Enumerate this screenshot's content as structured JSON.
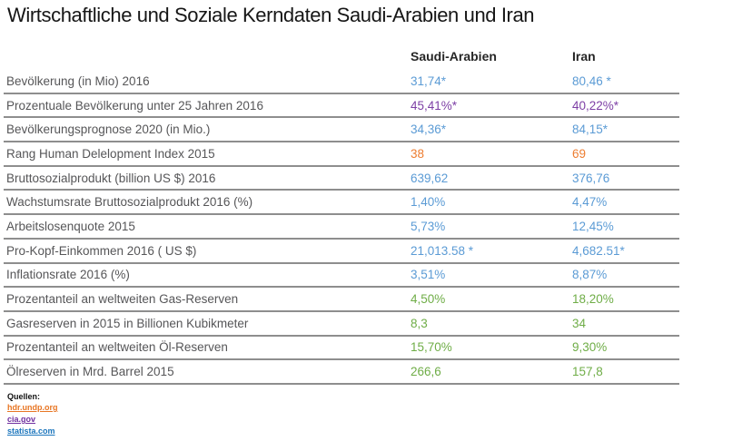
{
  "chart_data": {
    "type": "table",
    "title": "Wirtschaftliche und Soziale Kerndaten Saudi-Arabien und Iran",
    "columns": [
      "Saudi-Arabien",
      "Iran"
    ],
    "rows": [
      {
        "label": "Bevölkerung (in Mio) 2016",
        "values": [
          "31,74*",
          "80,46 *"
        ],
        "value_color": "#5b9bd5"
      },
      {
        "label": "Prozentuale Bevölkerung unter 25 Jahren 2016",
        "values": [
          "45,41%*",
          "40,22%*"
        ],
        "value_color": "#7d3fa5"
      },
      {
        "label": "Bevölkerungsprognose 2020 (in Mio.)",
        "values": [
          "34,36*",
          "84,15*"
        ],
        "value_color": "#5b9bd5"
      },
      {
        "label": "Rang Human Delelopment Index 2015",
        "values": [
          "38",
          "69"
        ],
        "value_color": "#ed7d31"
      },
      {
        "label": "Bruttosozialprodukt (billion US $) 2016",
        "values": [
          "639,62",
          "376,76"
        ],
        "value_color": "#5b9bd5"
      },
      {
        "label": "Wachstumsrate Bruttosozialprodukt 2016 (%)",
        "values": [
          "1,40%",
          "4,47%"
        ],
        "value_color": "#5b9bd5"
      },
      {
        "label": "Arbeitslosenquote 2015",
        "values": [
          "5,73%",
          "12,45%"
        ],
        "value_color": "#5b9bd5"
      },
      {
        "label": "Pro-Kopf-Einkommen 2016 ( US $)",
        "values": [
          "21,013.58 *",
          "4,682.51*"
        ],
        "value_color": "#5b9bd5"
      },
      {
        "label": "Inflationsrate 2016 (%)",
        "values": [
          "3,51%",
          "8,87%"
        ],
        "value_color": "#5b9bd5"
      },
      {
        "label": "Prozentanteil an weltweiten Gas-Reserven",
        "values": [
          "4,50%",
          "18,20%"
        ],
        "value_color": "#6fad47"
      },
      {
        "label": "Gasreserven in 2015 in Billionen Kubikmeter",
        "values": [
          "8,3",
          "34"
        ],
        "value_color": "#6fad47"
      },
      {
        "label": "Prozentanteil an weltweiten Öl-Reserven",
        "values": [
          "15,70%",
          "9,30%"
        ],
        "value_color": "#6fad47"
      },
      {
        "label": "Ölreserven in Mrd. Barrel 2015",
        "values": [
          "266,6",
          "157,8"
        ],
        "value_color": "#6fad47"
      }
    ],
    "layout": {
      "grid": "horizontal-row-separators",
      "legend": "none"
    }
  },
  "footer": {
    "sources_label": "Quellen:",
    "links": [
      {
        "text": "hdr.undp.org",
        "color": "#e87624"
      },
      {
        "text": "cia.gov",
        "color": "#7030a0"
      },
      {
        "text": "statista.com",
        "color": "#1b75bc"
      }
    ]
  },
  "colors": {
    "separator": "#8e8e8e",
    "label_text": "#565658",
    "header_text": "#262626",
    "blue": "#5b9bd5",
    "purple": "#7d3fa5",
    "orange": "#ed7d31",
    "green": "#6fad47"
  }
}
